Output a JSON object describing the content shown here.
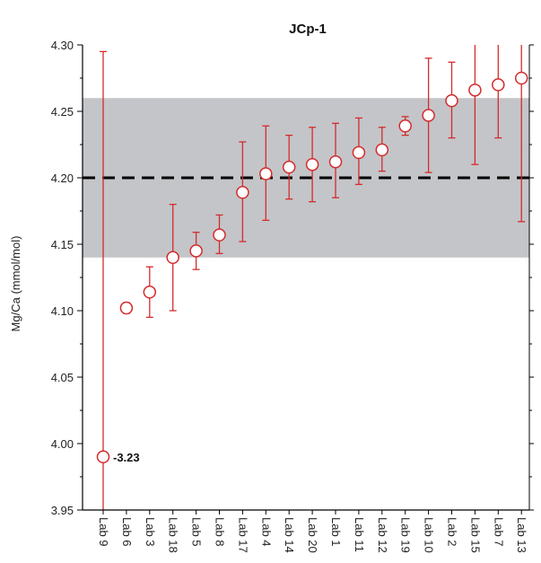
{
  "chart_data": {
    "type": "scatter",
    "title": "JCp-1",
    "ylabel": "Mg/Ca (mmol/mol)",
    "xlabel": "",
    "ylim": [
      3.95,
      4.3
    ],
    "yticks": [
      "3.95",
      "4.00",
      "4.05",
      "4.10",
      "4.15",
      "4.20",
      "4.25",
      "4.30"
    ],
    "reference_value": 4.2,
    "reference_band": [
      4.14,
      4.26
    ],
    "categories": [
      "Lab 9",
      "Lab 6",
      "Lab 3",
      "Lab 18",
      "Lab 5",
      "Lab 8",
      "Lab 17",
      "Lab 4",
      "Lab 14",
      "Lab 20",
      "Lab 1",
      "Lab 11",
      "Lab 12",
      "Lab 19",
      "Lab 10",
      "Lab 2",
      "Lab 15",
      "Lab 7",
      "Lab 13"
    ],
    "values": [
      3.99,
      4.102,
      4.114,
      4.14,
      4.145,
      4.157,
      4.189,
      4.203,
      4.208,
      4.21,
      4.212,
      4.219,
      4.221,
      4.239,
      4.247,
      4.258,
      4.266,
      4.27,
      4.275
    ],
    "err_low": [
      3.95,
      4.098,
      4.095,
      4.1,
      4.131,
      4.143,
      4.152,
      4.168,
      4.184,
      4.182,
      4.185,
      4.195,
      4.205,
      4.232,
      4.204,
      4.23,
      4.21,
      4.23,
      4.167
    ],
    "err_high": [
      4.295,
      4.106,
      4.133,
      4.18,
      4.159,
      4.172,
      4.227,
      4.239,
      4.232,
      4.238,
      4.241,
      4.245,
      4.238,
      4.246,
      4.29,
      4.287,
      4.3,
      4.3,
      4.3
    ],
    "annotations": [
      {
        "category": "Lab 9",
        "text": "-3.23"
      }
    ],
    "colors": {
      "marker": "#d42b2b",
      "band": "#c4c5c9",
      "reference_line": "#000000"
    },
    "grid": false
  }
}
